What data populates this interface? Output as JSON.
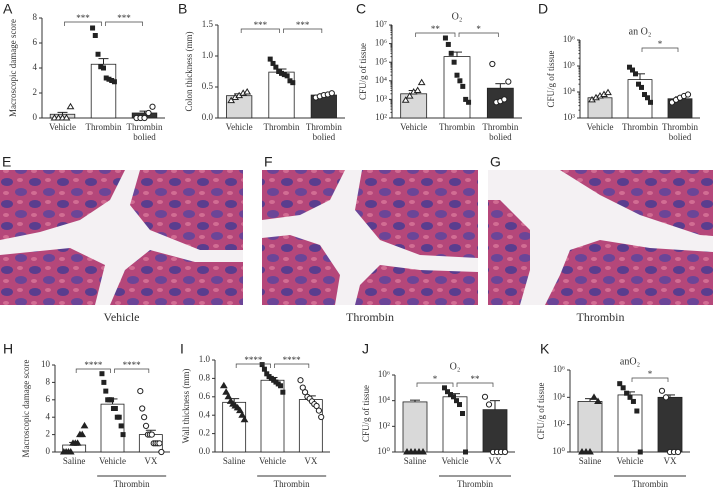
{
  "chart_data": [
    {
      "type": "bar",
      "panel": "A",
      "ylabel": "Macroscopic damage score",
      "categories": [
        "Vehicle",
        "Thrombin",
        "Thrombin\nbolied"
      ],
      "values": [
        0.3,
        4.3,
        0.4
      ],
      "errors": [
        0.15,
        0.45,
        0.15
      ],
      "colors": [
        "#d9d9d9",
        "#ffffff",
        "#333333"
      ],
      "points": [
        [
          0,
          0,
          0,
          0,
          0.9
        ],
        [
          7.2,
          6.6,
          5.1,
          4.1,
          4.0,
          3.2,
          3.1,
          3.0,
          2.9
        ],
        [
          0,
          0,
          0,
          0.4,
          0.9
        ]
      ],
      "ylim": [
        0,
        8
      ],
      "yticks": [
        0,
        2,
        4,
        6,
        8
      ],
      "log": false,
      "significance": [
        "***",
        "***"
      ]
    },
    {
      "type": "bar",
      "panel": "B",
      "ylabel": "Colon thickness (mm)",
      "categories": [
        "Vehicle",
        "Thrombin",
        "Thrombin\nbolied"
      ],
      "values": [
        0.36,
        0.74,
        0.37
      ],
      "errors": [
        0.03,
        0.05,
        0.02
      ],
      "colors": [
        "#d9d9d9",
        "#ffffff",
        "#333333"
      ],
      "points": [
        [
          0.28,
          0.33,
          0.36,
          0.4,
          0.42
        ],
        [
          0.95,
          0.88,
          0.82,
          0.75,
          0.72,
          0.7,
          0.68,
          0.6,
          0.57
        ],
        [
          0.33,
          0.35,
          0.37,
          0.38,
          0.4
        ]
      ],
      "ylim": [
        0,
        1.5
      ],
      "yticks": [
        {
          "value": 0,
          "label": "0.0"
        },
        0.5,
        {
          "value": 1,
          "label": "1.0"
        },
        1.5
      ],
      "log": false,
      "significance": [
        "***",
        "***"
      ]
    },
    {
      "type": "bar",
      "panel": "C",
      "title": "O₂",
      "ylabel": "CFU/g of tissue",
      "categories": [
        "Vehicle",
        "Thrombin",
        "Thrombin\nbolied"
      ],
      "values": [
        2000,
        200000,
        4000
      ],
      "errors": [
        1000,
        150000,
        3000
      ],
      "colors": [
        "#d9d9d9",
        "#ffffff",
        "#333333"
      ],
      "points": [
        [
          900,
          1500,
          2500,
          3000,
          8000
        ],
        [
          2000000,
          900000,
          300000,
          100000,
          20000,
          10000,
          5000,
          1000,
          700
        ],
        [
          80000,
          700,
          800,
          1000,
          9000
        ]
      ],
      "ylim": [
        100,
        10000000
      ],
      "yticks": [
        {
          "value": 100,
          "label": "10²"
        },
        {
          "value": 1000,
          "label": "10³"
        },
        {
          "value": 10000,
          "label": "10⁴"
        },
        {
          "value": 100000,
          "label": "10⁵"
        },
        {
          "value": 1000000,
          "label": "10⁶"
        },
        {
          "value": 10000000,
          "label": "10⁷"
        }
      ],
      "log": true,
      "significance": [
        "**",
        "*"
      ]
    },
    {
      "type": "bar",
      "panel": "D",
      "title": "an O₂",
      "ylabel": "CFU/g of tissue",
      "categories": [
        "Vehicle",
        "Thrombin",
        "Thrombin\nbolied"
      ],
      "values": [
        6000,
        30000,
        5500
      ],
      "errors": [
        1000,
        20000,
        1000
      ],
      "colors": [
        "#d9d9d9",
        "#ffffff",
        "#333333"
      ],
      "points": [
        [
          5000,
          6000,
          7000,
          8000,
          9500
        ],
        [
          90000,
          70000,
          50000,
          20000,
          15000,
          8000,
          6000,
          4000
        ],
        [
          4000,
          5000,
          6000,
          7000,
          8000
        ]
      ],
      "ylim": [
        1000,
        1000000
      ],
      "yticks": [
        {
          "value": 1000,
          "label": "10³"
        },
        {
          "value": 10000,
          "label": "10⁴"
        },
        {
          "value": 100000,
          "label": "10⁵"
        },
        {
          "value": 1000000,
          "label": "10⁶"
        }
      ],
      "log": true,
      "significance": [
        null,
        "*"
      ]
    },
    {
      "type": "bar",
      "panel": "H",
      "ylabel": "Macroscopic damage score",
      "categories": [
        "Saline",
        "Vehicle",
        "VX"
      ],
      "group_label": "Thrombin",
      "values": [
        0.8,
        5.5,
        2.0
      ],
      "errors": [
        0.3,
        0.6,
        0.5
      ],
      "colors": [
        "#ffffff",
        "#ffffff",
        "#ffffff"
      ],
      "points": [
        [
          0,
          0,
          0,
          0,
          1,
          1,
          1,
          2,
          2,
          3
        ],
        [
          9,
          8,
          7,
          6,
          6,
          6,
          5,
          5,
          4,
          4,
          3,
          2
        ],
        [
          7,
          5,
          4,
          3,
          2,
          2,
          2,
          1,
          1,
          1,
          1,
          0
        ]
      ],
      "ylim": [
        0,
        10
      ],
      "yticks": [
        0,
        2,
        4,
        6,
        8,
        10
      ],
      "log": false,
      "significance": [
        "****",
        "****"
      ]
    },
    {
      "type": "bar",
      "panel": "I",
      "ylabel": "Wall thickness (mm)",
      "categories": [
        "Saline",
        "Vehicle",
        "VX"
      ],
      "group_label": "Thrombin",
      "values": [
        0.54,
        0.78,
        0.57
      ],
      "errors": [
        0.04,
        0.03,
        0.04
      ],
      "colors": [
        "#ffffff",
        "#ffffff",
        "#ffffff"
      ],
      "points": [
        [
          0.72,
          0.65,
          0.6,
          0.55,
          0.52,
          0.5,
          0.48,
          0.45,
          0.4,
          0.35
        ],
        [
          0.95,
          0.9,
          0.85,
          0.82,
          0.8,
          0.78,
          0.76,
          0.74,
          0.72,
          0.65
        ],
        [
          0.78,
          0.7,
          0.65,
          0.6,
          0.58,
          0.55,
          0.52,
          0.5,
          0.45,
          0.38
        ]
      ],
      "ylim": [
        0,
        1
      ],
      "yticks": [
        {
          "value": 0,
          "label": "0.0"
        },
        0.2,
        0.4,
        0.6,
        0.8,
        {
          "value": 1,
          "label": "1.0"
        }
      ],
      "log": false,
      "significance": [
        "****",
        "****"
      ]
    },
    {
      "type": "bar",
      "panel": "J",
      "title": "O₂",
      "ylabel": "CFU/g of tissue",
      "categories": [
        "Saline",
        "Vehicle",
        "VX"
      ],
      "group_label": "Thrombin",
      "values": [
        8000,
        20000,
        2000
      ],
      "errors": [
        3000,
        15000,
        8000
      ],
      "colors": [
        "#d9d9d9",
        "#ffffff",
        "#333333"
      ],
      "points": [
        [
          1,
          1,
          1,
          1,
          1
        ],
        [
          100000,
          50000,
          30000,
          20000,
          10000,
          5000,
          1000,
          1
        ],
        [
          20000,
          5000,
          1,
          1,
          1,
          1
        ]
      ],
      "ylim": [
        1,
        1000000
      ],
      "yticks": [
        {
          "value": 1,
          "label": "10⁰"
        },
        {
          "value": 100,
          "label": "10²"
        },
        {
          "value": 10000,
          "label": "10⁴"
        },
        {
          "value": 1000000,
          "label": "10⁶"
        }
      ],
      "log": true,
      "significance": [
        "*",
        "**"
      ]
    },
    {
      "type": "bar",
      "panel": "K",
      "title": "anO₂",
      "ylabel": "CFU/g of tissue",
      "categories": [
        "Saline",
        "Vehicle",
        "VX"
      ],
      "group_label": "Thrombin",
      "values": [
        5000,
        15000,
        10000
      ],
      "errors": [
        3000,
        10000,
        5000
      ],
      "colors": [
        "#d9d9d9",
        "#ffffff",
        "#333333"
      ],
      "points": [
        [
          1,
          1,
          1,
          10000,
          5000
        ],
        [
          100000,
          50000,
          20000,
          10000,
          5000,
          1000,
          1
        ],
        [
          30000,
          10000,
          1,
          1,
          1
        ]
      ],
      "ylim": [
        1,
        1000000
      ],
      "yticks": [
        {
          "value": 1,
          "label": "10⁰"
        },
        {
          "value": 100,
          "label": "10²"
        },
        {
          "value": 10000,
          "label": "10⁴"
        },
        {
          "value": 1000000,
          "label": "10⁶"
        }
      ],
      "log": true,
      "significance": [
        null,
        "*"
      ]
    }
  ],
  "images": [
    {
      "panel": "E",
      "caption": "Vehicle"
    },
    {
      "panel": "F",
      "caption": "Thrombin"
    },
    {
      "panel": "G",
      "caption": "Thrombin"
    }
  ]
}
